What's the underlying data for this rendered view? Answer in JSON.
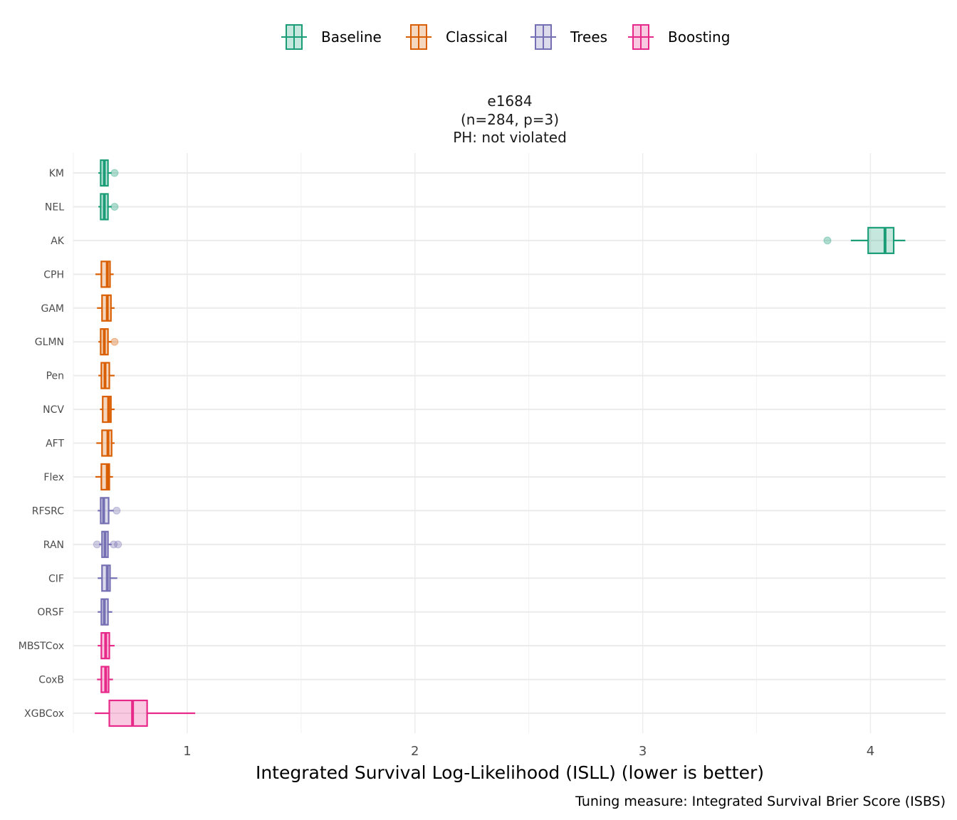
{
  "chart_data": {
    "type": "boxplot",
    "title_lines": [
      "e1684",
      "(n=284, p=3)",
      "PH: not violated"
    ],
    "xlabel": "Integrated Survival Log-Likelihood (ISLL) (lower is better)",
    "caption": "Tuning measure: Integrated Survival Brier Score (ISBS)",
    "xlim": [
      0.5,
      4.33
    ],
    "xticks": [
      1,
      2,
      3,
      4
    ],
    "grid": true,
    "legend": {
      "placement": "top",
      "entries": [
        {
          "name": "Baseline",
          "color": "#1b9e77"
        },
        {
          "name": "Classical",
          "color": "#d95f02"
        },
        {
          "name": "Trees",
          "color": "#7570b3"
        },
        {
          "name": "Boosting",
          "color": "#e7298a"
        }
      ]
    },
    "series": [
      {
        "name": "KM",
        "group": "Baseline",
        "wlo": 0.61,
        "q1": 0.62,
        "median": 0.636,
        "q3": 0.652,
        "whi": 0.668,
        "outliers": [
          0.681
        ]
      },
      {
        "name": "NEL",
        "group": "Baseline",
        "wlo": 0.61,
        "q1": 0.62,
        "median": 0.636,
        "q3": 0.652,
        "whi": 0.668,
        "outliers": [
          0.681
        ]
      },
      {
        "name": "AK",
        "group": "Baseline",
        "wlo": 3.914,
        "q1": 3.99,
        "median": 4.064,
        "q3": 4.102,
        "whi": 4.153,
        "outliers": [
          3.811
        ]
      },
      {
        "name": "CPH",
        "group": "Classical",
        "wlo": 0.597,
        "q1": 0.623,
        "median": 0.649,
        "q3": 0.661,
        "whi": 0.677,
        "outliers": []
      },
      {
        "name": "GAM",
        "group": "Classical",
        "wlo": 0.604,
        "q1": 0.626,
        "median": 0.649,
        "q3": 0.665,
        "whi": 0.681,
        "outliers": []
      },
      {
        "name": "GLMN",
        "group": "Classical",
        "wlo": 0.61,
        "q1": 0.62,
        "median": 0.636,
        "q3": 0.652,
        "whi": 0.668,
        "outliers": [
          0.681
        ]
      },
      {
        "name": "Pen",
        "group": "Classical",
        "wlo": 0.61,
        "q1": 0.623,
        "median": 0.639,
        "q3": 0.658,
        "whi": 0.681,
        "outliers": []
      },
      {
        "name": "NCV",
        "group": "Classical",
        "wlo": 0.617,
        "q1": 0.629,
        "median": 0.655,
        "q3": 0.665,
        "whi": 0.681,
        "outliers": []
      },
      {
        "name": "AFT",
        "group": "Classical",
        "wlo": 0.601,
        "q1": 0.626,
        "median": 0.652,
        "q3": 0.668,
        "whi": 0.681,
        "outliers": []
      },
      {
        "name": "Flex",
        "group": "Classical",
        "wlo": 0.597,
        "q1": 0.623,
        "median": 0.649,
        "q3": 0.658,
        "whi": 0.674,
        "outliers": []
      },
      {
        "name": "RFSRC",
        "group": "Trees",
        "wlo": 0.607,
        "q1": 0.62,
        "median": 0.633,
        "q3": 0.655,
        "whi": 0.677,
        "outliers": [
          0.69
        ]
      },
      {
        "name": "RAN",
        "group": "Trees",
        "wlo": 0.613,
        "q1": 0.626,
        "median": 0.639,
        "q3": 0.652,
        "whi": 0.668,
        "outliers": [
          0.604,
          0.677,
          0.696
        ]
      },
      {
        "name": "CIF",
        "group": "Trees",
        "wlo": 0.607,
        "q1": 0.626,
        "median": 0.649,
        "q3": 0.661,
        "whi": 0.693,
        "outliers": []
      },
      {
        "name": "ORSF",
        "group": "Trees",
        "wlo": 0.607,
        "q1": 0.623,
        "median": 0.636,
        "q3": 0.652,
        "whi": 0.671,
        "outliers": []
      },
      {
        "name": "MBSTCox",
        "group": "Boosting",
        "wlo": 0.607,
        "q1": 0.623,
        "median": 0.642,
        "q3": 0.658,
        "whi": 0.681,
        "outliers": []
      },
      {
        "name": "CoxB",
        "group": "Boosting",
        "wlo": 0.604,
        "q1": 0.623,
        "median": 0.642,
        "q3": 0.655,
        "whi": 0.674,
        "outliers": []
      },
      {
        "name": "XGBCox",
        "group": "Boosting",
        "wlo": 0.594,
        "q1": 0.658,
        "median": 0.76,
        "q3": 0.824,
        "whi": 1.035,
        "outliers": []
      }
    ]
  }
}
